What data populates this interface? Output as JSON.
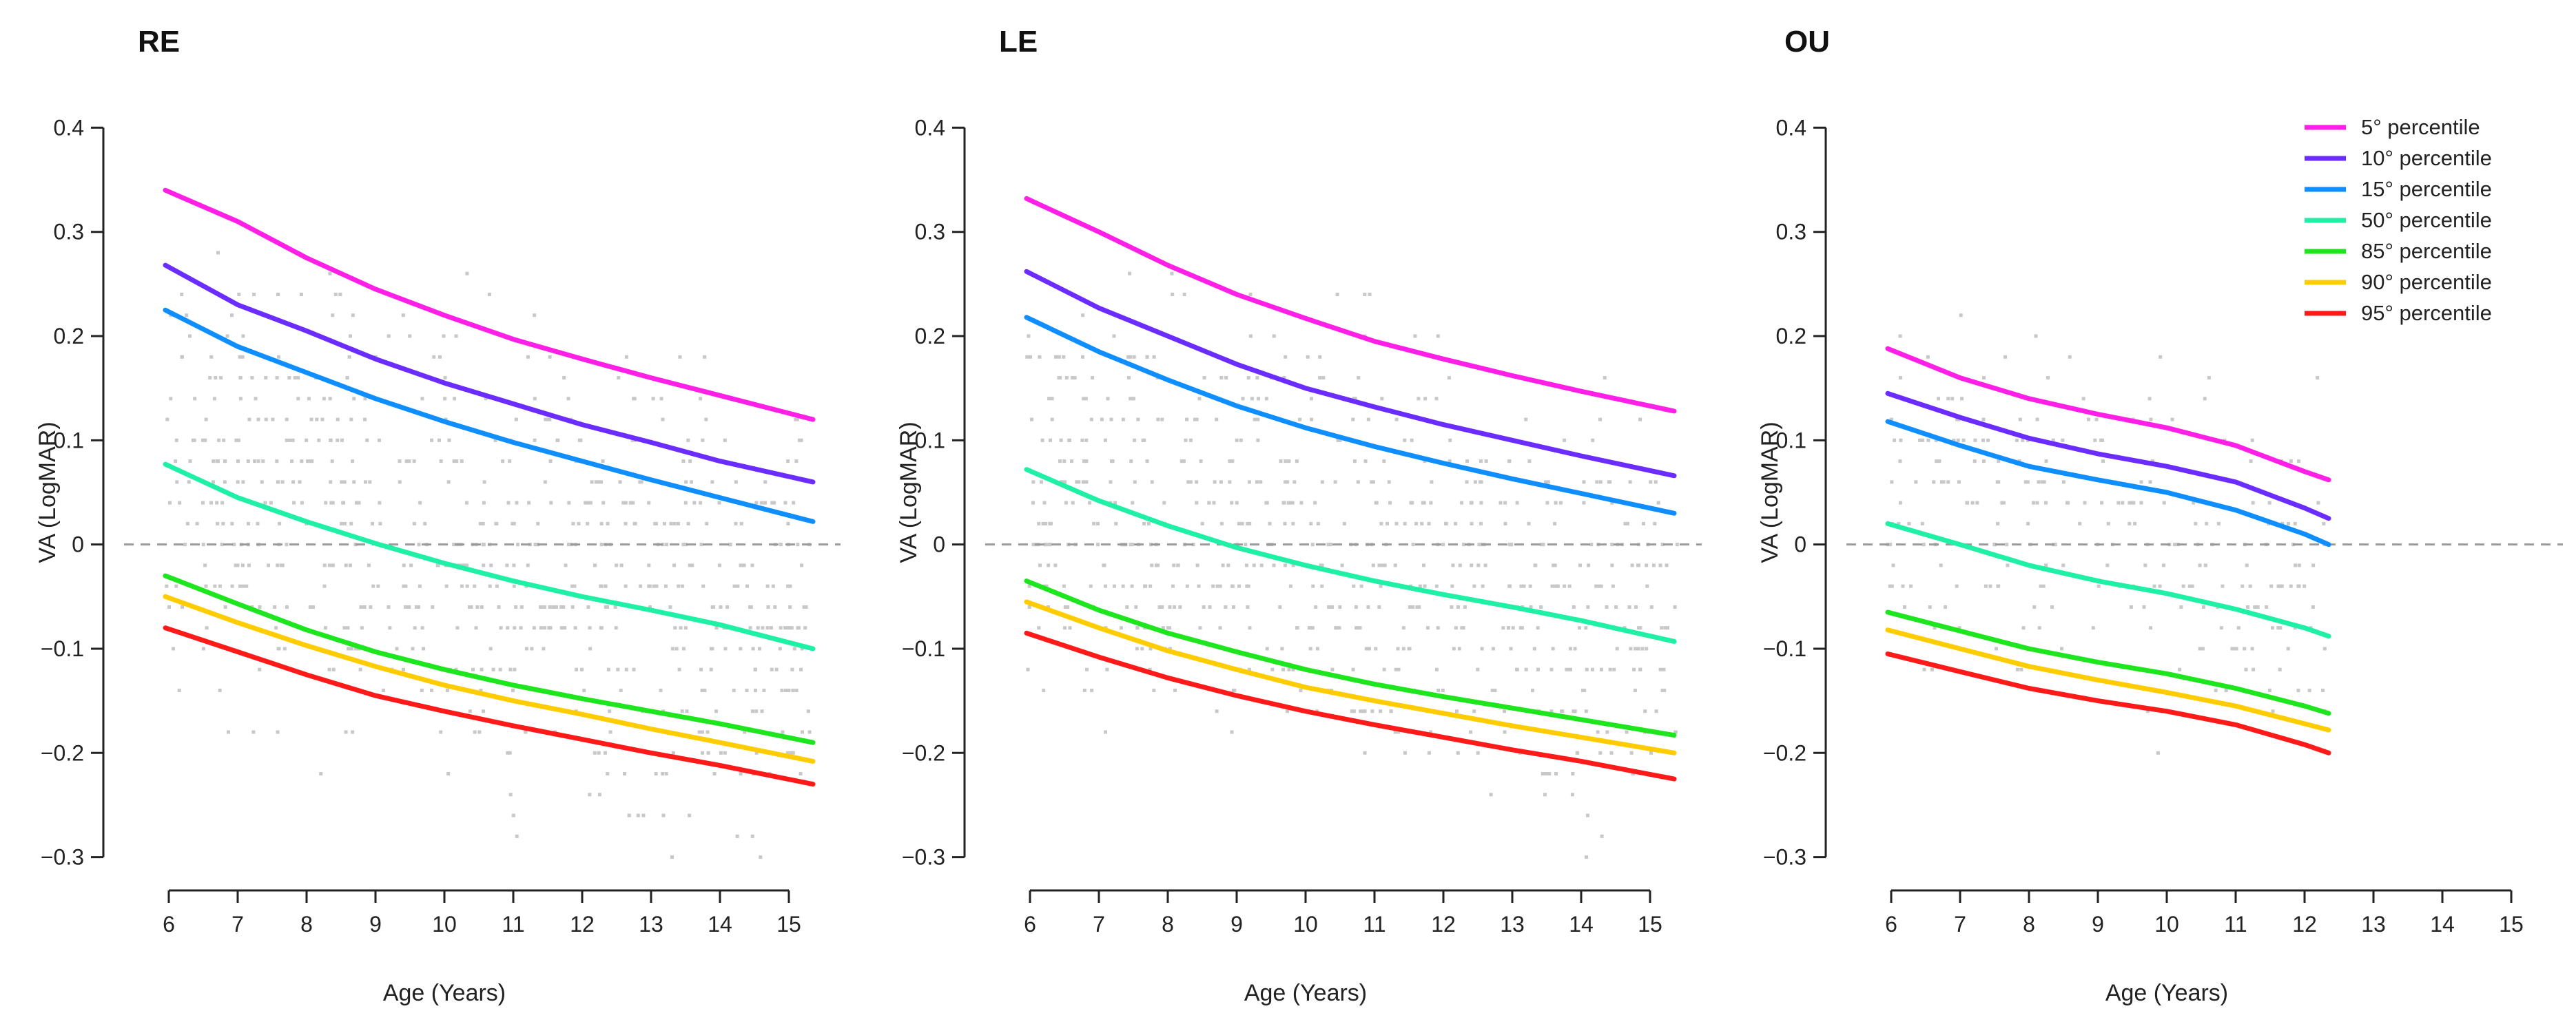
{
  "chart_data": [
    {
      "type": "line",
      "title": "RE",
      "xlabel": "Age (Years)",
      "ylabel": "VA (LogMAR)",
      "xlim": [
        5.55,
        15.45
      ],
      "ylim": [
        -0.33,
        0.43
      ],
      "xticks": [
        6,
        7,
        8,
        9,
        10,
        11,
        12,
        13,
        14,
        15
      ],
      "xtick_labels": [
        "6",
        "7",
        "8",
        "9",
        "10",
        "11",
        "12",
        "13",
        "14",
        "15"
      ],
      "yticks": [
        -0.3,
        -0.2,
        -0.1,
        0,
        0.1,
        0.2,
        0.3,
        0.4
      ],
      "ytick_labels": [
        "−0.3",
        "−0.2",
        "−0.1",
        "0",
        "0.1",
        "0.2",
        "0.3",
        "0.4"
      ],
      "reference_line": 0,
      "series": [
        {
          "name": "5° percentile",
          "color": "#ff1fe6",
          "x": [
            5.95,
            7,
            8,
            9,
            10,
            11,
            12,
            13,
            14,
            15.35
          ],
          "values": [
            0.34,
            0.31,
            0.275,
            0.245,
            0.22,
            0.197,
            0.178,
            0.16,
            0.143,
            0.12
          ]
        },
        {
          "name": "10° percentile",
          "color": "#6a2cff",
          "x": [
            5.95,
            7,
            8,
            9,
            10,
            11,
            12,
            13,
            14,
            15.35
          ],
          "values": [
            0.268,
            0.23,
            0.205,
            0.178,
            0.155,
            0.135,
            0.115,
            0.098,
            0.08,
            0.06
          ]
        },
        {
          "name": "15° percentile",
          "color": "#0f8fff",
          "x": [
            5.95,
            7,
            8,
            9,
            10,
            11,
            12,
            13,
            14,
            15.35
          ],
          "values": [
            0.225,
            0.19,
            0.165,
            0.14,
            0.118,
            0.098,
            0.08,
            0.062,
            0.045,
            0.022
          ]
        },
        {
          "name": "50° percentile",
          "color": "#1ef0a6",
          "x": [
            5.95,
            7,
            8,
            9,
            10,
            11,
            12,
            13,
            14,
            15.35
          ],
          "values": [
            0.077,
            0.045,
            0.022,
            0.001,
            -0.018,
            -0.035,
            -0.05,
            -0.063,
            -0.077,
            -0.1
          ]
        },
        {
          "name": "85° percentile",
          "color": "#1ee61e",
          "x": [
            5.95,
            7,
            8,
            9,
            10,
            11,
            12,
            13,
            14,
            15.35
          ],
          "values": [
            -0.03,
            -0.057,
            -0.082,
            -0.103,
            -0.12,
            -0.135,
            -0.148,
            -0.16,
            -0.172,
            -0.19
          ]
        },
        {
          "name": "90° percentile",
          "color": "#ffcc00",
          "x": [
            5.95,
            7,
            8,
            9,
            10,
            11,
            12,
            13,
            14,
            15.35
          ],
          "values": [
            -0.05,
            -0.075,
            -0.097,
            -0.117,
            -0.135,
            -0.15,
            -0.163,
            -0.177,
            -0.19,
            -0.208
          ]
        },
        {
          "name": "95° percentile",
          "color": "#ff1a1a",
          "x": [
            5.95,
            7,
            8,
            9,
            10,
            11,
            12,
            13,
            14,
            15.35
          ],
          "values": [
            -0.08,
            -0.103,
            -0.125,
            -0.145,
            -0.16,
            -0.174,
            -0.187,
            -0.2,
            -0.212,
            -0.23
          ]
        }
      ]
    },
    {
      "type": "line",
      "title": "LE",
      "xlabel": "Age (Years)",
      "ylabel": "VA (LogMAR)",
      "xlim": [
        5.55,
        15.45
      ],
      "ylim": [
        -0.33,
        0.43
      ],
      "xticks": [
        6,
        7,
        8,
        9,
        10,
        11,
        12,
        13,
        14,
        15
      ],
      "xtick_labels": [
        "6",
        "7",
        "8",
        "9",
        "10",
        "11",
        "12",
        "13",
        "14",
        "15"
      ],
      "yticks": [
        -0.3,
        -0.2,
        -0.1,
        0,
        0.1,
        0.2,
        0.3,
        0.4
      ],
      "ytick_labels": [
        "−0.3",
        "−0.2",
        "−0.1",
        "0",
        "0.1",
        "0.2",
        "0.3",
        "0.4"
      ],
      "reference_line": 0,
      "series": [
        {
          "name": "5° percentile",
          "color": "#ff1fe6",
          "x": [
            5.95,
            7,
            8,
            9,
            10,
            11,
            12,
            13,
            14,
            15.35
          ],
          "values": [
            0.332,
            0.3,
            0.268,
            0.24,
            0.217,
            0.195,
            0.178,
            0.162,
            0.147,
            0.128
          ]
        },
        {
          "name": "10° percentile",
          "color": "#6a2cff",
          "x": [
            5.95,
            7,
            8,
            9,
            10,
            11,
            12,
            13,
            14,
            15.35
          ],
          "values": [
            0.262,
            0.227,
            0.2,
            0.173,
            0.15,
            0.132,
            0.115,
            0.1,
            0.085,
            0.066
          ]
        },
        {
          "name": "15° percentile",
          "color": "#0f8fff",
          "x": [
            5.95,
            7,
            8,
            9,
            10,
            11,
            12,
            13,
            14,
            15.35
          ],
          "values": [
            0.218,
            0.185,
            0.158,
            0.133,
            0.112,
            0.094,
            0.078,
            0.063,
            0.049,
            0.03
          ]
        },
        {
          "name": "50° percentile",
          "color": "#1ef0a6",
          "x": [
            5.95,
            7,
            8,
            9,
            10,
            11,
            12,
            13,
            14,
            15.35
          ],
          "values": [
            0.072,
            0.042,
            0.018,
            -0.003,
            -0.02,
            -0.035,
            -0.048,
            -0.06,
            -0.073,
            -0.093
          ]
        },
        {
          "name": "85° percentile",
          "color": "#1ee61e",
          "x": [
            5.95,
            7,
            8,
            9,
            10,
            11,
            12,
            13,
            14,
            15.35
          ],
          "values": [
            -0.035,
            -0.063,
            -0.085,
            -0.103,
            -0.12,
            -0.134,
            -0.146,
            -0.157,
            -0.168,
            -0.183
          ]
        },
        {
          "name": "90° percentile",
          "color": "#ffcc00",
          "x": [
            5.95,
            7,
            8,
            9,
            10,
            11,
            12,
            13,
            14,
            15.35
          ],
          "values": [
            -0.055,
            -0.08,
            -0.102,
            -0.12,
            -0.137,
            -0.15,
            -0.162,
            -0.174,
            -0.185,
            -0.2
          ]
        },
        {
          "name": "95° percentile",
          "color": "#ff1a1a",
          "x": [
            5.95,
            7,
            8,
            9,
            10,
            11,
            12,
            13,
            14,
            15.35
          ],
          "values": [
            -0.085,
            -0.108,
            -0.128,
            -0.145,
            -0.16,
            -0.173,
            -0.185,
            -0.197,
            -0.208,
            -0.225
          ]
        }
      ]
    },
    {
      "type": "line",
      "title": "OU",
      "xlabel": "Age (Years)",
      "ylabel": "VA (LogMAR)",
      "xlim": [
        5.55,
        15.45
      ],
      "ylim": [
        -0.33,
        0.43
      ],
      "xticks": [
        6,
        7,
        8,
        9,
        10,
        11,
        12,
        13,
        14,
        15
      ],
      "xtick_labels": [
        "6",
        "7",
        "8",
        "9",
        "10",
        "11",
        "12",
        "13",
        "14",
        "15"
      ],
      "yticks": [
        -0.3,
        -0.2,
        -0.1,
        0,
        0.1,
        0.2,
        0.3,
        0.4
      ],
      "ytick_labels": [
        "−0.3",
        "−0.2",
        "−0.1",
        "0",
        "0.1",
        "0.2",
        "0.3",
        "0.4"
      ],
      "reference_line": 0,
      "legend": "top-right",
      "series": [
        {
          "name": "5° percentile",
          "color": "#ff1fe6",
          "x": [
            5.95,
            7,
            8,
            9,
            10,
            11,
            12,
            12.35
          ],
          "values": [
            0.188,
            0.16,
            0.14,
            0.125,
            0.112,
            0.095,
            0.07,
            0.062
          ]
        },
        {
          "name": "10° percentile",
          "color": "#6a2cff",
          "x": [
            5.95,
            7,
            8,
            9,
            10,
            11,
            12,
            12.35
          ],
          "values": [
            0.145,
            0.122,
            0.102,
            0.087,
            0.075,
            0.06,
            0.035,
            0.025
          ]
        },
        {
          "name": "15° percentile",
          "color": "#0f8fff",
          "x": [
            5.95,
            7,
            8,
            9,
            10,
            11,
            12,
            12.35
          ],
          "values": [
            0.118,
            0.095,
            0.075,
            0.062,
            0.05,
            0.033,
            0.01,
            0.0
          ]
        },
        {
          "name": "50° percentile",
          "color": "#1ef0a6",
          "x": [
            5.95,
            7,
            8,
            9,
            10,
            11,
            12,
            12.35
          ],
          "values": [
            0.02,
            0.0,
            -0.02,
            -0.035,
            -0.047,
            -0.062,
            -0.08,
            -0.088
          ]
        },
        {
          "name": "85° percentile",
          "color": "#1ee61e",
          "x": [
            5.95,
            7,
            8,
            9,
            10,
            11,
            12,
            12.35
          ],
          "values": [
            -0.065,
            -0.083,
            -0.1,
            -0.113,
            -0.124,
            -0.138,
            -0.155,
            -0.162
          ]
        },
        {
          "name": "90° percentile",
          "color": "#ffcc00",
          "x": [
            5.95,
            7,
            8,
            9,
            10,
            11,
            12,
            12.35
          ],
          "values": [
            -0.082,
            -0.1,
            -0.117,
            -0.13,
            -0.142,
            -0.155,
            -0.172,
            -0.178
          ]
        },
        {
          "name": "95° percentile",
          "color": "#ff1a1a",
          "x": [
            5.95,
            7,
            8,
            9,
            10,
            11,
            12,
            12.35
          ],
          "values": [
            -0.105,
            -0.122,
            -0.138,
            -0.15,
            -0.16,
            -0.173,
            -0.192,
            -0.2
          ]
        }
      ]
    }
  ]
}
